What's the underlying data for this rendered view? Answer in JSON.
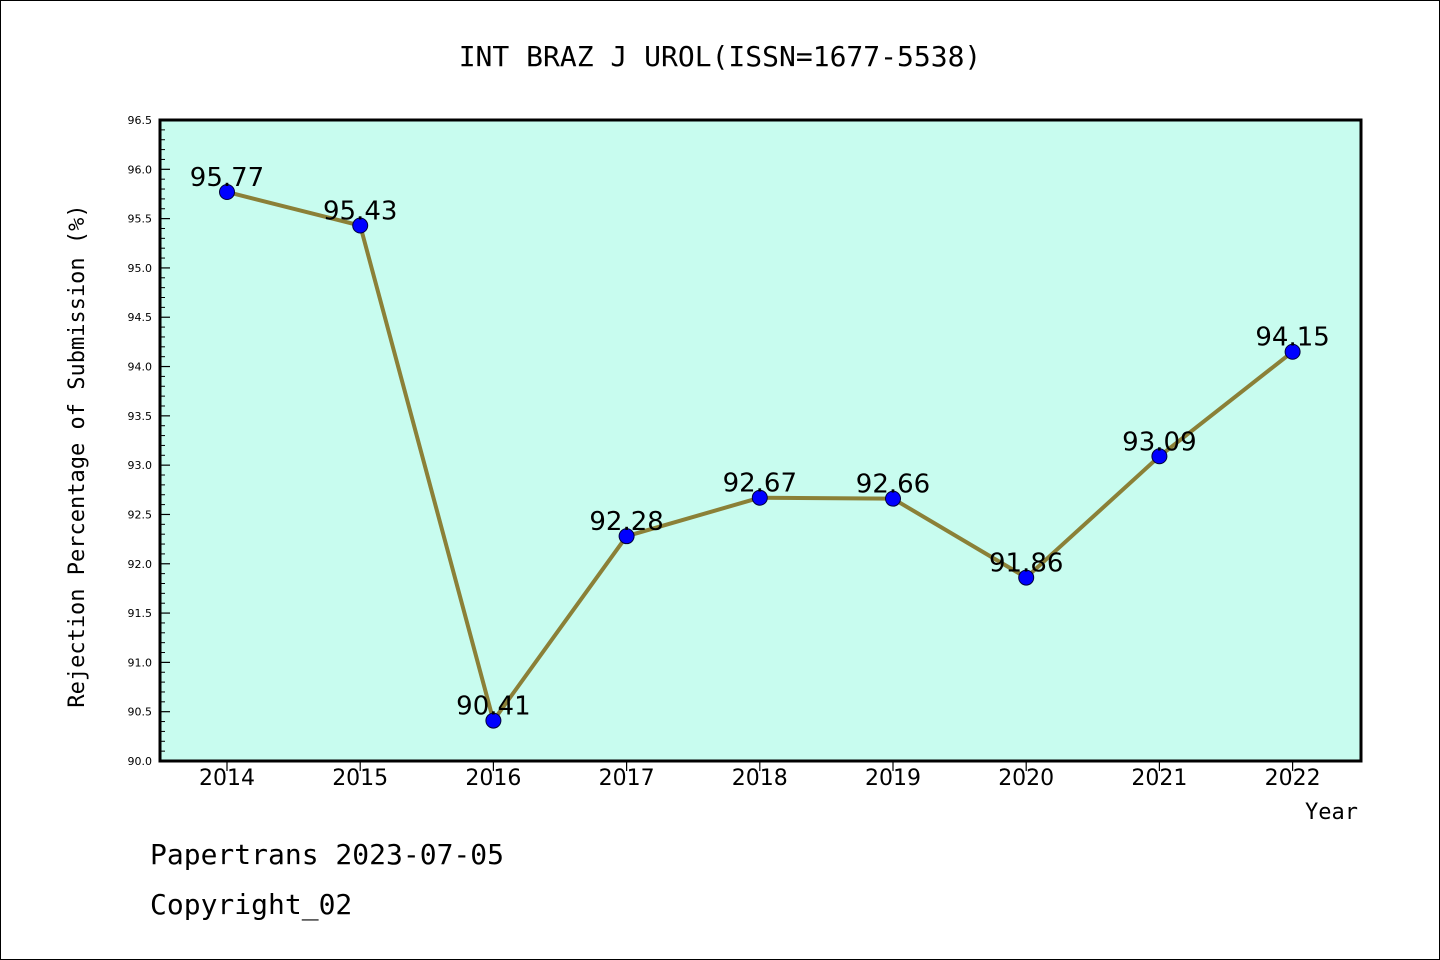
{
  "chart_data": {
    "type": "line",
    "title": "INT BRAZ J UROL(ISSN=1677-5538)",
    "xlabel": "Year",
    "ylabel": "Rejection Percentage of Submission (%)",
    "categories": [
      "2014",
      "2015",
      "2016",
      "2017",
      "2018",
      "2019",
      "2020",
      "2021",
      "2022"
    ],
    "values": [
      95.77,
      95.43,
      90.41,
      92.28,
      92.67,
      92.66,
      91.86,
      93.09,
      94.15
    ],
    "data_labels": [
      "95.77",
      "95.43",
      "90.41",
      "92.28",
      "92.67",
      "92.66",
      "91.86",
      "93.09",
      "94.15"
    ],
    "ylim": [
      90.0,
      96.5
    ],
    "yticks": [
      "90.0",
      "90.5",
      "91.0",
      "91.5",
      "92.0",
      "92.5",
      "93.0",
      "93.5",
      "94.0",
      "94.5",
      "95.0",
      "95.5",
      "96.0",
      "96.5"
    ],
    "grid": false,
    "legend": "none",
    "colors": {
      "plot_background": "#c8fcef",
      "line": "#8b8037",
      "marker": "#0000ff"
    }
  },
  "footer": {
    "line1": "Papertrans 2023-07-05",
    "line2": "Copyright_02"
  }
}
